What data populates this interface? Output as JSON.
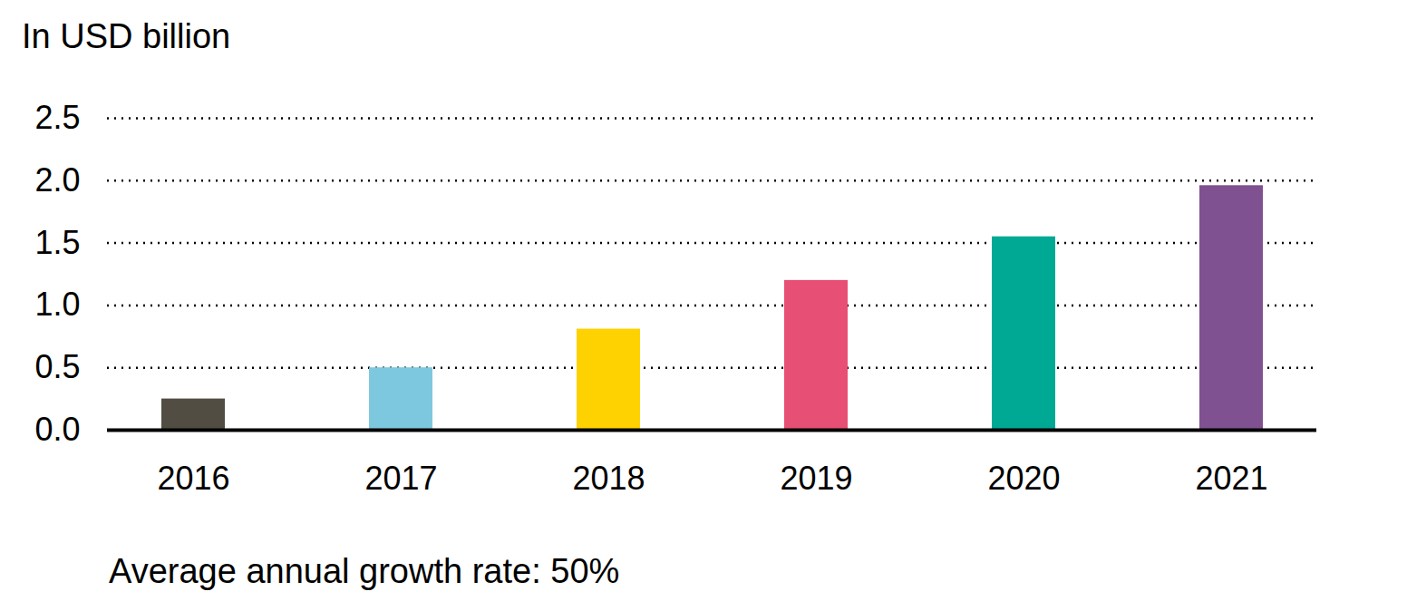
{
  "chart_data": {
    "type": "bar",
    "y_label": "In USD billion",
    "caption": "Average annual growth rate: 50%",
    "categories": [
      "2016",
      "2017",
      "2018",
      "2019",
      "2020",
      "2021"
    ],
    "values": [
      0.25,
      0.5,
      0.81,
      1.2,
      1.55,
      1.96
    ],
    "colors": [
      "#514d43",
      "#7ec8df",
      "#fdd200",
      "#e84f74",
      "#00a994",
      "#7f5190"
    ],
    "ylim": [
      0,
      2.5
    ],
    "yticks": [
      {
        "value": 0,
        "label": "0.0"
      },
      0.5,
      {
        "value": 1,
        "label": "1.0"
      },
      1.5,
      {
        "value": 2,
        "label": "2.0"
      },
      2.5
    ],
    "grid": true
  }
}
